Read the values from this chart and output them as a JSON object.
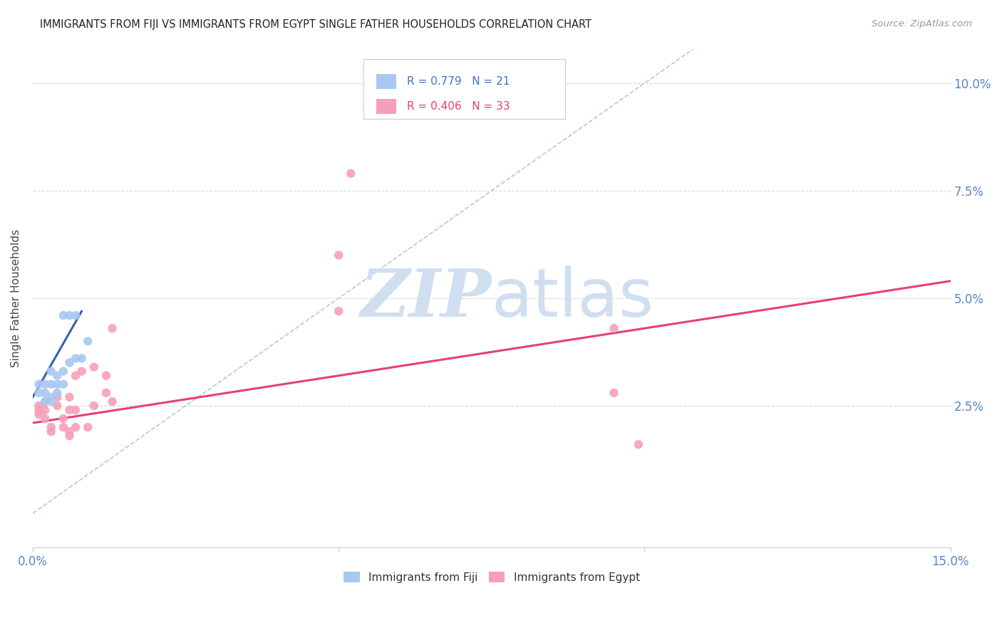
{
  "title": "IMMIGRANTS FROM FIJI VS IMMIGRANTS FROM EGYPT SINGLE FATHER HOUSEHOLDS CORRELATION CHART",
  "source": "Source: ZipAtlas.com",
  "ylabel": "Single Father Households",
  "xlim": [
    0.0,
    0.15
  ],
  "ylim": [
    -0.008,
    0.108
  ],
  "fiji_color": "#a8c8f0",
  "egypt_color": "#f5a0b8",
  "fiji_line_color": "#3a60b0",
  "egypt_line_color": "#e84070",
  "diag_line_color": "#b0c8e8",
  "grid_color": "#d8d8d8",
  "background_color": "#ffffff",
  "marker_size": 80,
  "fiji_points_x": [
    0.001,
    0.001,
    0.002,
    0.002,
    0.002,
    0.003,
    0.003,
    0.003,
    0.003,
    0.004,
    0.004,
    0.004,
    0.005,
    0.005,
    0.005,
    0.006,
    0.006,
    0.007,
    0.007,
    0.008,
    0.009
  ],
  "fiji_points_y": [
    0.028,
    0.03,
    0.026,
    0.028,
    0.03,
    0.026,
    0.027,
    0.03,
    0.033,
    0.028,
    0.03,
    0.032,
    0.03,
    0.033,
    0.046,
    0.035,
    0.046,
    0.036,
    0.046,
    0.036,
    0.04
  ],
  "egypt_points_x": [
    0.001,
    0.001,
    0.001,
    0.002,
    0.002,
    0.002,
    0.003,
    0.003,
    0.004,
    0.004,
    0.005,
    0.005,
    0.006,
    0.006,
    0.006,
    0.006,
    0.007,
    0.007,
    0.007,
    0.008,
    0.009,
    0.01,
    0.01,
    0.012,
    0.012,
    0.013,
    0.013,
    0.05,
    0.05,
    0.052,
    0.095,
    0.095,
    0.099
  ],
  "egypt_points_y": [
    0.023,
    0.024,
    0.025,
    0.022,
    0.024,
    0.026,
    0.019,
    0.02,
    0.025,
    0.027,
    0.02,
    0.022,
    0.018,
    0.019,
    0.024,
    0.027,
    0.02,
    0.024,
    0.032,
    0.033,
    0.02,
    0.025,
    0.034,
    0.028,
    0.032,
    0.026,
    0.043,
    0.047,
    0.06,
    0.079,
    0.028,
    0.043,
    0.016
  ],
  "fiji_line_start_x": 0.0,
  "fiji_line_end_x": 0.008,
  "fiji_line_start_y": 0.027,
  "fiji_line_end_y": 0.047,
  "egypt_line_start_x": 0.0,
  "egypt_line_end_x": 0.15,
  "egypt_line_start_y": 0.021,
  "egypt_line_end_y": 0.054,
  "diag_line_x0": 0.0,
  "diag_line_y0": 0.0,
  "diag_line_x1": 0.108,
  "diag_line_y1": 0.108,
  "watermark_zip": "ZIP",
  "watermark_atlas": "atlas",
  "watermark_color": "#d0dff0",
  "fiji_R": "0.779",
  "fiji_N": "21",
  "egypt_R": "0.406",
  "egypt_N": "33"
}
